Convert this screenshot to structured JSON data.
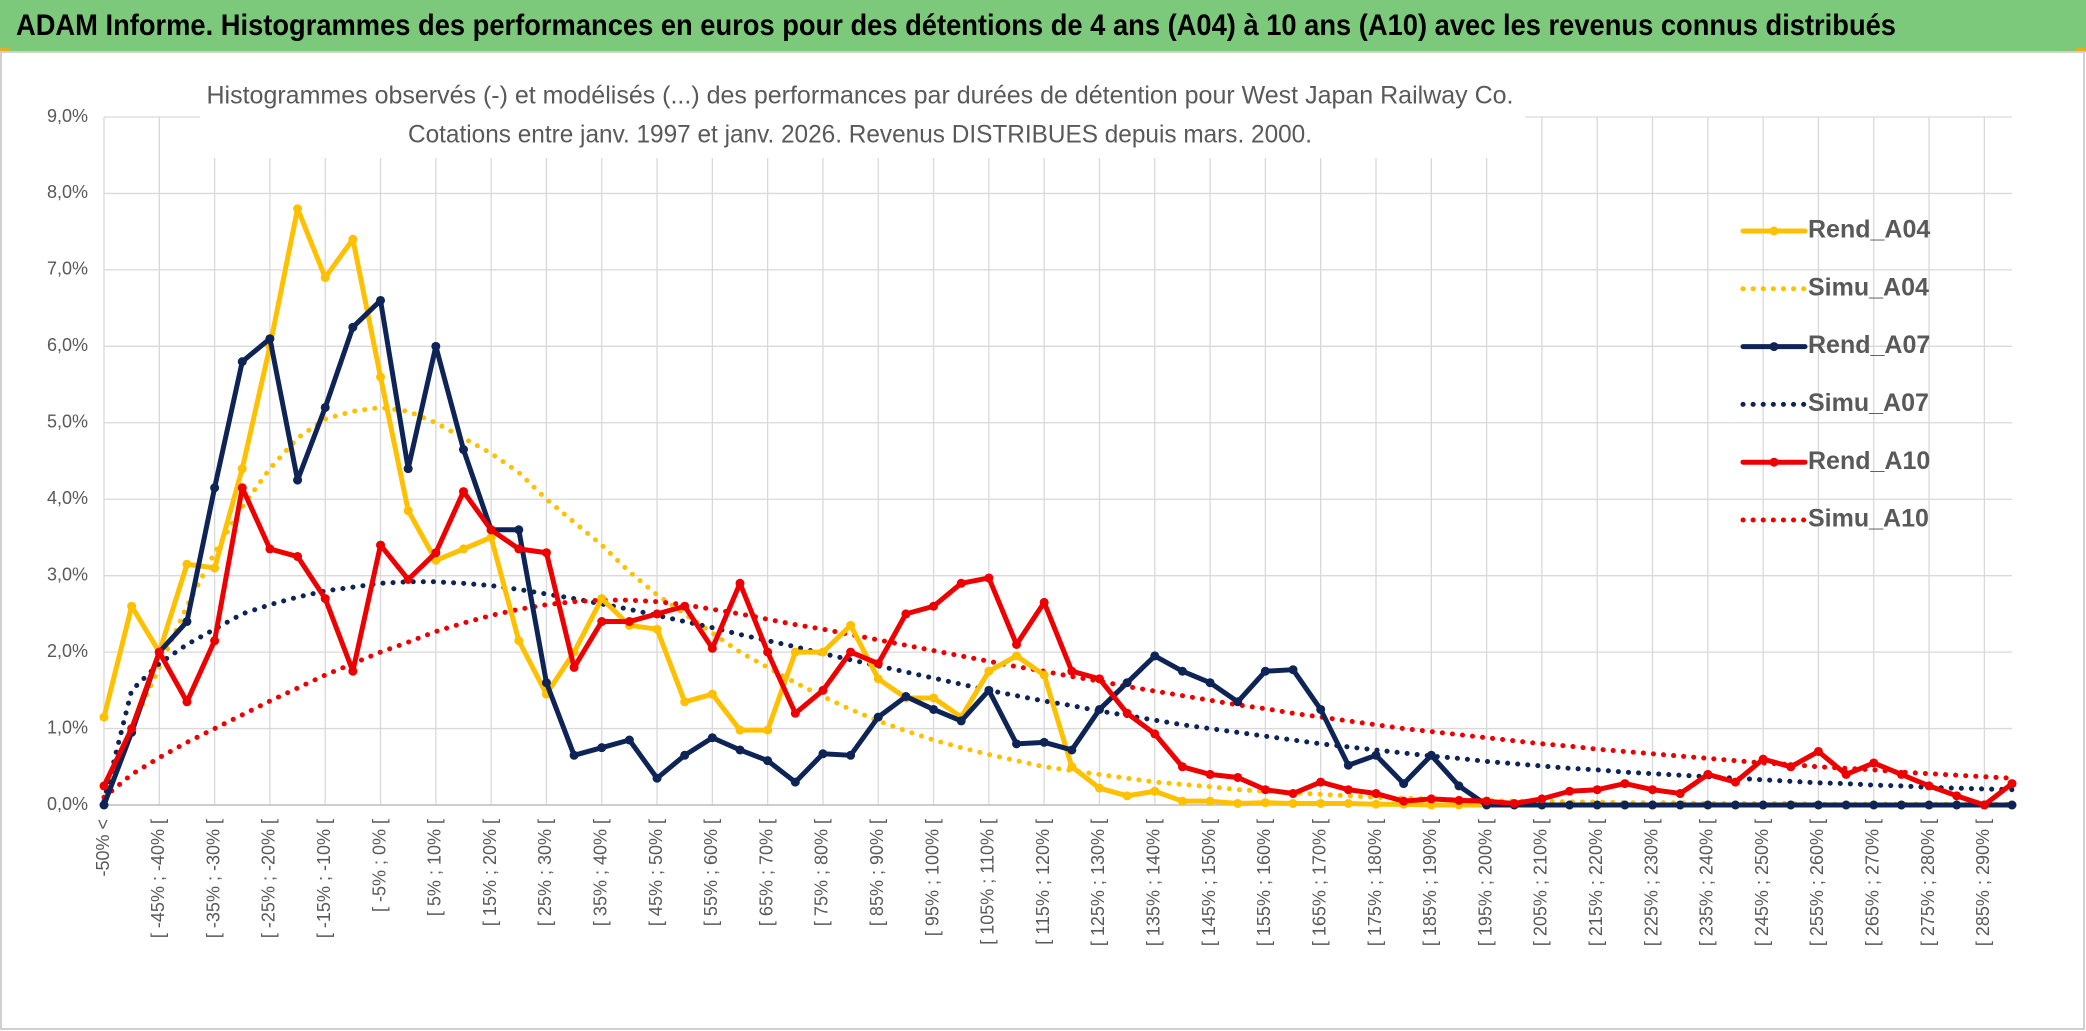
{
  "header": {
    "title": "ADAM Informe. Histogrammes des performances en euros pour des détentions de 4 ans (A04) à 10 ans (A10) avec les revenus connus distribués"
  },
  "chart_data": {
    "type": "line",
    "title": "Histogrammes observés (-) et modélisés (...) des performances par durées de détention pour West Japan Railway Co.",
    "subtitle": "Cotations entre janv. 1997 et janv. 2026. Revenus DISTRIBUES depuis mars. 2000.",
    "categories": [
      "-50% <",
      null,
      "[ -45% ; -40% [",
      null,
      "[ -35% ; -30% [",
      null,
      "[ -25% ; -20% [",
      null,
      "[ -15% ; -10% [",
      null,
      "[ -5% ; 0% [",
      null,
      "[ 5% ; 10% [",
      null,
      "[ 15% ; 20% [",
      null,
      "[ 25% ; 30% [",
      null,
      "[ 35% ; 40% [",
      null,
      "[ 45% ; 50% [",
      null,
      "[ 55% ; 60% [",
      null,
      "[ 65% ; 70% [",
      null,
      "[ 75% ; 80% [",
      null,
      "[ 85% ; 90% [",
      null,
      "[ 95% ; 100% [",
      null,
      "[ 105% ; 110% [",
      null,
      "[ 115% ; 120% [",
      null,
      "[ 125% ; 130% [",
      null,
      "[ 135% ; 140% [",
      null,
      "[ 145% ; 150% [",
      null,
      "[ 155% ; 160% [",
      null,
      "[ 165% ; 170% [",
      null,
      "[ 175% ; 180% [",
      null,
      "[ 185% ; 190% [",
      null,
      "[ 195% ; 200% [",
      null,
      "[ 205% ; 210% [",
      null,
      "[ 215% ; 220% [",
      null,
      "[ 225% ; 230% [",
      null,
      "[ 235% ; 240% [",
      null,
      "[ 245% ; 250% [",
      null,
      "[ 255% ; 260% [",
      null,
      "[ 265% ; 270% [",
      null,
      "[ 275% ; 280% [",
      null,
      "[ 285% ; 290% [",
      null
    ],
    "ylim": [
      0,
      9
    ],
    "yticks": [
      {
        "value": 0,
        "label": "0,0%"
      },
      {
        "value": 1,
        "label": "1,0%"
      },
      {
        "value": 2,
        "label": "2,0%"
      },
      {
        "value": 3,
        "label": "3,0%"
      },
      {
        "value": 4,
        "label": "4,0%"
      },
      {
        "value": 5,
        "label": "5,0%"
      },
      {
        "value": 6,
        "label": "6,0%"
      },
      {
        "value": 7,
        "label": "7,0%"
      },
      {
        "value": 8,
        "label": "8,0%"
      },
      {
        "value": 9,
        "label": "9,0%"
      }
    ],
    "grid": true,
    "legend": "right",
    "series": [
      {
        "name": "Rend_A04",
        "color": "#FFC000",
        "line_style": "solid",
        "markers": true,
        "values": [
          1.15,
          2.6,
          2.0,
          3.15,
          3.1,
          4.4,
          6.0,
          7.8,
          6.9,
          7.4,
          5.6,
          3.85,
          3.2,
          3.35,
          3.5,
          2.15,
          1.45,
          2.0,
          2.7,
          2.35,
          2.3,
          1.35,
          1.45,
          0.98,
          0.98,
          2.0,
          2.0,
          2.35,
          1.65,
          1.4,
          1.4,
          1.15,
          1.75,
          1.95,
          1.7,
          0.5,
          0.22,
          0.12,
          0.18,
          0.05,
          0.05,
          0.02,
          0.03,
          0.02,
          0.02,
          0.02,
          0.01,
          0.01,
          0,
          0,
          0,
          0,
          0,
          0,
          0,
          0,
          0,
          0,
          0,
          0,
          0,
          0,
          0,
          0,
          0,
          0,
          0,
          0,
          0,
          0
        ]
      },
      {
        "name": "Simu_A04",
        "color": "#FFC000",
        "line_style": "dotted",
        "markers": false,
        "values": [
          0.1,
          1.0,
          1.8,
          2.6,
          3.3,
          3.9,
          4.4,
          4.8,
          5.05,
          5.15,
          5.2,
          5.15,
          5.0,
          4.8,
          4.6,
          4.35,
          4.0,
          3.7,
          3.4,
          3.05,
          2.75,
          2.5,
          2.25,
          2.0,
          1.8,
          1.6,
          1.42,
          1.25,
          1.1,
          0.97,
          0.85,
          0.75,
          0.66,
          0.58,
          0.5,
          0.45,
          0.4,
          0.35,
          0.3,
          0.27,
          0.24,
          0.2,
          0.18,
          0.16,
          0.14,
          0.12,
          0.1,
          0.09,
          0.08,
          0.07,
          0.06,
          0.05,
          0.05,
          0.04,
          0.04,
          0.03,
          0.03,
          0.03,
          0.02,
          0.02,
          0.02,
          0.02,
          0.01,
          0.01,
          0.01,
          0.01,
          0.01,
          0.01,
          0.01,
          0.01
        ]
      },
      {
        "name": "Rend_A07",
        "color": "#0E2457",
        "line_style": "solid",
        "markers": true,
        "values": [
          0,
          0.95,
          2.0,
          2.4,
          4.15,
          5.8,
          6.1,
          4.25,
          5.2,
          6.25,
          6.6,
          4.4,
          6.0,
          4.65,
          3.6,
          3.6,
          1.6,
          0.65,
          0.75,
          0.85,
          0.35,
          0.65,
          0.88,
          0.72,
          0.58,
          0.3,
          0.67,
          0.65,
          1.15,
          1.42,
          1.25,
          1.1,
          1.5,
          0.8,
          0.82,
          0.72,
          1.25,
          1.6,
          1.95,
          1.75,
          1.6,
          1.35,
          1.75,
          1.77,
          1.25,
          0.52,
          0.65,
          0.28,
          0.65,
          0.25,
          0,
          0,
          0,
          0,
          0,
          0,
          0,
          0,
          0,
          0,
          0,
          0,
          0,
          0,
          0,
          0,
          0,
          0,
          0,
          0
        ]
      },
      {
        "name": "Simu_A07",
        "color": "#0E2457",
        "line_style": "dotted",
        "markers": false,
        "values": [
          0.05,
          1.5,
          1.85,
          2.1,
          2.3,
          2.5,
          2.62,
          2.72,
          2.8,
          2.85,
          2.9,
          2.92,
          2.92,
          2.9,
          2.87,
          2.82,
          2.76,
          2.7,
          2.63,
          2.56,
          2.48,
          2.4,
          2.32,
          2.23,
          2.15,
          2.07,
          1.98,
          1.9,
          1.82,
          1.74,
          1.66,
          1.58,
          1.5,
          1.43,
          1.36,
          1.3,
          1.23,
          1.17,
          1.11,
          1.05,
          1.0,
          0.95,
          0.9,
          0.85,
          0.8,
          0.76,
          0.72,
          0.68,
          0.64,
          0.61,
          0.57,
          0.54,
          0.51,
          0.48,
          0.46,
          0.43,
          0.41,
          0.39,
          0.37,
          0.35,
          0.33,
          0.31,
          0.29,
          0.28,
          0.26,
          0.25,
          0.23,
          0.22,
          0.21,
          0.2
        ]
      },
      {
        "name": "Rend_A10",
        "color": "#EE0000",
        "line_style": "solid",
        "markers": true,
        "values": [
          0.25,
          1.0,
          2.0,
          1.35,
          2.15,
          4.15,
          3.35,
          3.25,
          2.7,
          1.75,
          3.4,
          2.95,
          3.3,
          4.1,
          3.6,
          3.35,
          3.3,
          1.8,
          2.4,
          2.4,
          2.5,
          2.6,
          2.05,
          2.9,
          2.0,
          1.2,
          1.5,
          2.0,
          1.85,
          2.5,
          2.6,
          2.9,
          2.97,
          2.1,
          2.65,
          1.75,
          1.65,
          1.2,
          0.93,
          0.5,
          0.4,
          0.36,
          0.2,
          0.15,
          0.3,
          0.2,
          0.15,
          0.05,
          0.08,
          0.06,
          0.05,
          0.02,
          0.08,
          0.18,
          0.2,
          0.28,
          0.2,
          0.15,
          0.4,
          0.3,
          0.6,
          0.5,
          0.7,
          0.4,
          0.55,
          0.4,
          0.25,
          0.12,
          0.0,
          0.28
        ]
      },
      {
        "name": "Simu_A10",
        "color": "#EE0000",
        "line_style": "dotted",
        "markers": false,
        "values": [
          0.1,
          0.4,
          0.62,
          0.82,
          1.0,
          1.18,
          1.36,
          1.53,
          1.7,
          1.85,
          2.0,
          2.13,
          2.27,
          2.38,
          2.48,
          2.56,
          2.62,
          2.66,
          2.68,
          2.68,
          2.66,
          2.62,
          2.56,
          2.5,
          2.43,
          2.36,
          2.3,
          2.23,
          2.16,
          2.09,
          2.02,
          1.95,
          1.88,
          1.81,
          1.75,
          1.68,
          1.62,
          1.55,
          1.49,
          1.43,
          1.37,
          1.31,
          1.26,
          1.2,
          1.15,
          1.1,
          1.05,
          1.0,
          0.96,
          0.92,
          0.88,
          0.84,
          0.8,
          0.77,
          0.73,
          0.7,
          0.67,
          0.64,
          0.61,
          0.58,
          0.55,
          0.53,
          0.5,
          0.48,
          0.46,
          0.43,
          0.41,
          0.39,
          0.37,
          0.35
        ]
      }
    ]
  }
}
